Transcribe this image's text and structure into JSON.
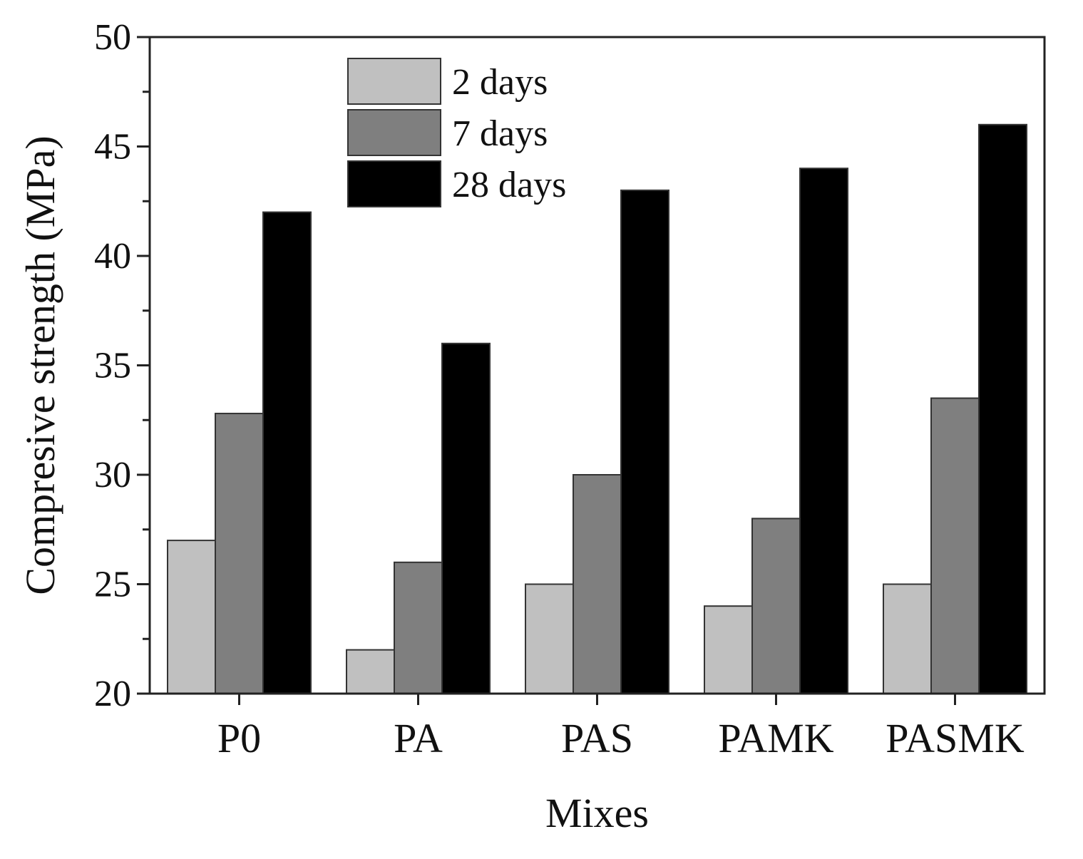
{
  "chart_data": {
    "type": "bar",
    "xlabel": "Mixes",
    "ylabel": "Compresive strength (MPa)",
    "ylim": [
      20,
      50
    ],
    "yticks": [
      20,
      25,
      30,
      35,
      40,
      45,
      50
    ],
    "categories": [
      "P0",
      "PA",
      "PAS",
      "PAMK",
      "PASMK"
    ],
    "series": [
      {
        "name": "2 days",
        "color": "#c0c0c0",
        "values": [
          27,
          22,
          25,
          24,
          25
        ]
      },
      {
        "name": "7 days",
        "color": "#7f7f7f",
        "values": [
          32.8,
          26,
          30,
          28,
          33.5
        ]
      },
      {
        "name": "28 days",
        "color": "#000000",
        "values": [
          42,
          36,
          43,
          44,
          46
        ]
      }
    ],
    "legend_position": "top-left",
    "grid": false
  }
}
